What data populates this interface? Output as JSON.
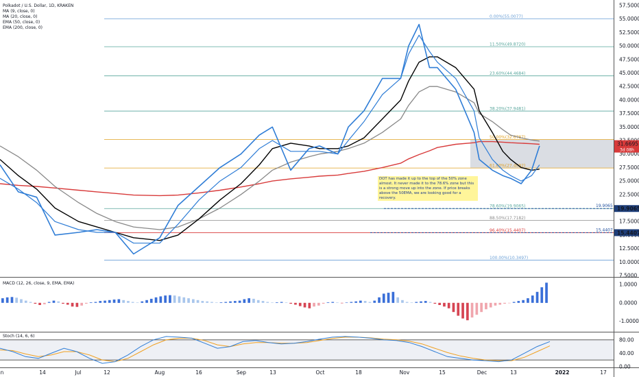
{
  "header": {
    "title": "Polkadot / U.S. Dollar, 1D, KRAKEN",
    "indicators": [
      "MA (9, close, 0)",
      "MA (20, close, 0)",
      "EMA (50, close, 0)",
      "EMA (200, close, 0)"
    ]
  },
  "colors": {
    "price": "#2f7dd6",
    "ma9": "#2f7dd6",
    "ma20": "#000000",
    "ema50": "#888888",
    "ema200": "#d83a3a",
    "macd_pos_strong": "#3a6fd8",
    "macd_pos_light": "#a9c6ec",
    "macd_neg_strong": "#d64553",
    "macd_neg_light": "#f0a6ad",
    "stoch_k": "#2f7dd6",
    "stoch_d": "#f0a020",
    "zone_fill": "#d6d9e0",
    "fib_line": "#6aa7a0"
  },
  "chart_data": [
    {
      "type": "line",
      "title": "Polkadot / U.S. Dollar, 1D, KRAKEN",
      "x_dates": [
        "2021-06-01",
        "2021-06-08",
        "2021-06-15",
        "2021-06-22",
        "2021-07-01",
        "2021-07-08",
        "2021-07-15",
        "2021-07-22",
        "2021-08-01",
        "2021-08-08",
        "2021-08-16",
        "2021-08-24",
        "2021-09-01",
        "2021-09-08",
        "2021-09-13",
        "2021-09-20",
        "2021-09-27",
        "2021-10-01",
        "2021-10-08",
        "2021-10-12",
        "2021-10-18",
        "2021-10-25",
        "2021-11-01",
        "2021-11-04",
        "2021-11-08",
        "2021-11-12",
        "2021-11-15",
        "2021-11-22",
        "2021-11-29",
        "2021-12-01",
        "2021-12-06",
        "2021-12-10",
        "2021-12-13",
        "2021-12-17",
        "2021-12-21",
        "2021-12-24"
      ],
      "series": [
        {
          "name": "Price",
          "values": [
            28.0,
            23.0,
            22.0,
            15.0,
            15.5,
            16.0,
            15.5,
            11.5,
            14.5,
            20.5,
            24.0,
            27.5,
            30.0,
            33.5,
            35.0,
            27.0,
            31.0,
            31.5,
            30.0,
            35.0,
            38.0,
            44.0,
            44.0,
            50.0,
            54.0,
            46.0,
            46.0,
            42.0,
            34.0,
            29.0,
            27.0,
            26.0,
            25.5,
            24.5,
            27.0,
            31.5
          ]
        },
        {
          "name": "MA (9, close, 0)",
          "values": [
            25.5,
            23.5,
            21.0,
            17.5,
            16.0,
            15.5,
            15.5,
            13.5,
            13.5,
            17.0,
            21.5,
            25.0,
            27.5,
            31.0,
            32.5,
            30.5,
            30.5,
            30.5,
            30.0,
            32.5,
            36.0,
            41.0,
            44.0,
            48.5,
            52.0,
            49.0,
            47.0,
            44.0,
            38.0,
            33.0,
            29.0,
            27.0,
            26.0,
            25.0,
            26.0,
            28.0
          ]
        },
        {
          "name": "MA (20, close, 0)",
          "values": [
            29.0,
            26.0,
            23.5,
            20.0,
            17.5,
            16.5,
            15.5,
            14.5,
            14.0,
            15.0,
            18.0,
            21.5,
            24.5,
            28.0,
            31.0,
            32.0,
            31.5,
            31.0,
            31.0,
            31.5,
            33.0,
            36.5,
            40.0,
            43.5,
            47.0,
            48.0,
            48.0,
            46.0,
            42.0,
            38.0,
            34.0,
            30.5,
            29.0,
            27.5,
            27.0,
            27.2
          ]
        },
        {
          "name": "EMA (50, close, 0)",
          "values": [
            31.5,
            29.5,
            27.0,
            24.0,
            21.0,
            19.0,
            17.5,
            16.5,
            16.0,
            16.5,
            18.0,
            20.0,
            22.5,
            25.0,
            27.0,
            28.5,
            29.5,
            30.0,
            30.5,
            31.0,
            32.0,
            34.0,
            36.5,
            39.0,
            41.5,
            42.5,
            42.5,
            41.5,
            39.5,
            37.5,
            36.0,
            34.5,
            33.5,
            33.0,
            32.6,
            32.4
          ]
        },
        {
          "name": "EMA (200, close, 0)",
          "values": [
            24.5,
            24.2,
            24.0,
            23.7,
            23.3,
            23.0,
            22.7,
            22.4,
            22.3,
            22.4,
            22.8,
            23.3,
            23.9,
            24.5,
            25.0,
            25.4,
            25.7,
            25.9,
            26.1,
            26.4,
            26.8,
            27.5,
            28.3,
            29.1,
            29.9,
            30.6,
            31.2,
            31.8,
            32.1,
            32.3,
            32.3,
            32.2,
            32.1,
            32.0,
            31.9,
            31.8
          ]
        }
      ],
      "ylim": [
        7.5,
        57.5
      ],
      "yticks": [
        "57.5000",
        "55.0000",
        "52.5000",
        "50.0000",
        "47.5000",
        "45.0000",
        "42.5000",
        "40.0000",
        "37.5000",
        "35.0000",
        "32.5000",
        "30.0000",
        "27.5000",
        "25.0000",
        "22.5000",
        "20.0000",
        "17.5000",
        "15.0000",
        "12.5000",
        "10.0000",
        "7.5000"
      ],
      "xticks": [
        "n",
        "14",
        "Jul",
        "12",
        "Aug",
        "16",
        "Sep",
        "13",
        "Oct",
        "18",
        "Nov",
        "15",
        "Dec",
        "13",
        "2022",
        "17"
      ],
      "fib_levels": [
        {
          "label": "0.00%(55.0077)",
          "value": 55.0077
        },
        {
          "label": "11.50%(49.8720)",
          "value": 49.872
        },
        {
          "label": "23.60%(44.4684)",
          "value": 44.4684
        },
        {
          "label": "38.20%(37.9481)",
          "value": 37.9481
        },
        {
          "label": "50.00%(32.6787)",
          "value": 32.6787
        },
        {
          "label": "61.80%(27.4092)",
          "value": 27.4092
        },
        {
          "label": "78.60%(19.9065)",
          "value": 19.9065
        },
        {
          "label": "88.50%(17.7182)",
          "value": 17.7182
        },
        {
          "label": "96.40%(15.4407)",
          "value": 15.4407
        },
        {
          "label": "100.00%(10.3497)",
          "value": 10.3497
        }
      ],
      "hlines": [
        {
          "label": "19.9065",
          "value": 19.9065
        },
        {
          "label": "15.4407",
          "value": 15.4407
        }
      ],
      "last_price_label": "31.6695",
      "last_price_sub": "3d 08h",
      "zone": {
        "from": 27.4,
        "to": 32.7
      },
      "annotation": "DOT has made it up to the top of the 50% zone almost. It never made it to the 78.6% zone but this is a strong move up into the zone. If price breaks above the 50EMA, we are looking good for a recovery."
    },
    {
      "type": "bar",
      "title": "MACD (12, 26, close, 9, EMA, EMA)",
      "values": [
        0.25,
        0.3,
        0.32,
        0.28,
        0.2,
        0.12,
        0.05,
        -0.05,
        -0.12,
        -0.08,
        0.05,
        0.12,
        0.08,
        -0.05,
        -0.1,
        -0.2,
        -0.22,
        -0.15,
        -0.05,
        0.03,
        0.05,
        0.1,
        0.12,
        0.15,
        0.18,
        0.2,
        0.15,
        0.1,
        0.05,
        0.02,
        0.08,
        0.15,
        0.22,
        0.3,
        0.35,
        0.4,
        0.42,
        0.4,
        0.35,
        0.3,
        0.25,
        0.2,
        0.15,
        0.1,
        0.08,
        0.05,
        0.02,
        0.03,
        0.05,
        0.08,
        0.1,
        0.12,
        0.2,
        0.25,
        0.22,
        0.15,
        0.1,
        0.05,
        0.02,
        0.03,
        0.05,
        0.02,
        -0.05,
        -0.1,
        -0.18,
        -0.25,
        -0.3,
        -0.2,
        -0.15,
        -0.05,
        0.03,
        0.05,
        0.02,
        -0.02,
        0.02,
        0.05,
        0.08,
        0.12,
        0.1,
        0.05,
        0.12,
        0.3,
        0.5,
        0.55,
        0.6,
        0.3,
        0.15,
        0.05,
        0.02,
        0.05,
        0.08,
        0.1,
        0.05,
        -0.05,
        -0.12,
        -0.2,
        -0.3,
        -0.5,
        -0.7,
        -0.85,
        -0.95,
        -0.8,
        -0.65,
        -0.5,
        -0.35,
        -0.25,
        -0.15,
        -0.1,
        -0.05,
        -0.02,
        0.05,
        0.1,
        0.15,
        0.25,
        0.4,
        0.6,
        0.85,
        1.1
      ],
      "ylim": [
        -1.5,
        1.3
      ],
      "yticks": [
        "1.0000",
        "0.0000",
        "-1.0000"
      ]
    },
    {
      "type": "line",
      "title": "Stoch (14, 6, 6)",
      "series": [
        {
          "name": "%K",
          "values": [
            55,
            45,
            30,
            25,
            40,
            55,
            45,
            25,
            10,
            15,
            35,
            60,
            80,
            90,
            88,
            85,
            70,
            55,
            60,
            75,
            78,
            72,
            68,
            70,
            75,
            82,
            88,
            90,
            88,
            85,
            80,
            78,
            72,
            60,
            45,
            30,
            25,
            20,
            18,
            15,
            20,
            40,
            60,
            75
          ]
        },
        {
          "name": "%D",
          "values": [
            50,
            48,
            38,
            30,
            35,
            45,
            45,
            35,
            20,
            15,
            25,
            45,
            65,
            80,
            85,
            85,
            78,
            65,
            60,
            68,
            72,
            72,
            70,
            70,
            72,
            78,
            84,
            88,
            88,
            86,
            82,
            80,
            76,
            68,
            55,
            42,
            32,
            25,
            20,
            18,
            18,
            28,
            45,
            62
          ]
        }
      ],
      "ylim": [
        0,
        100
      ],
      "yticks": [
        "80.00",
        "40.00",
        "0.00"
      ]
    }
  ]
}
